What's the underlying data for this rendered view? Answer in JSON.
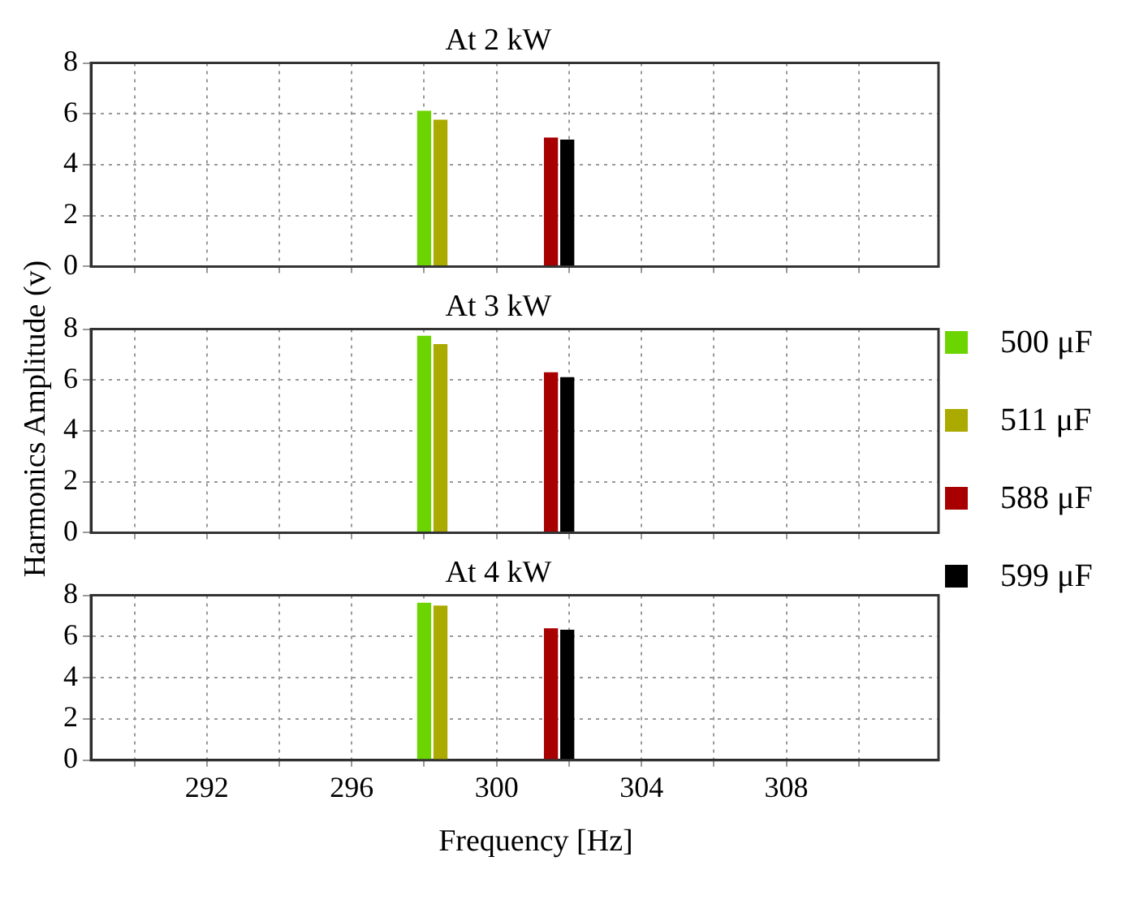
{
  "chart_data": [
    {
      "type": "bar",
      "title": "At 2 kW",
      "legend": "right",
      "xlim": [
        288.8,
        312.2
      ],
      "xticks": [
        {
          "value": 290,
          "label": null
        },
        292,
        {
          "value": 294,
          "label": null
        },
        296,
        {
          "value": 298,
          "label": null
        },
        300,
        {
          "value": 302,
          "label": null
        },
        304,
        {
          "value": 306,
          "label": null
        },
        308,
        {
          "value": 310,
          "label": null
        }
      ],
      "ylim": [
        0,
        8
      ],
      "yticks": [
        0,
        2,
        4,
        6,
        8
      ],
      "grid": true,
      "tick_labels": "y",
      "series": [
        {
          "name": "500 μF",
          "color": "#6cd400",
          "x": [
            298
          ],
          "values": [
            6.1
          ]
        },
        {
          "name": "511 μF",
          "color": "#aaaa00",
          "x": [
            298.45
          ],
          "values": [
            5.75
          ]
        },
        {
          "name": "588 μF",
          "color": "#a80000",
          "x": [
            301.5
          ],
          "values": [
            5.05
          ]
        },
        {
          "name": "599 μF",
          "color": "#000000",
          "x": [
            301.95
          ],
          "values": [
            4.97
          ]
        }
      ]
    },
    {
      "type": "bar",
      "title": "At 3 kW",
      "ylabel": "Harmonics Amplitude (v)",
      "xlim": [
        288.8,
        312.2
      ],
      "xticks": [
        {
          "value": 290,
          "label": null
        },
        292,
        {
          "value": 294,
          "label": null
        },
        296,
        {
          "value": 298,
          "label": null
        },
        300,
        {
          "value": 302,
          "label": null
        },
        304,
        {
          "value": 306,
          "label": null
        },
        308,
        {
          "value": 310,
          "label": null
        }
      ],
      "ylim": [
        0,
        8
      ],
      "yticks": [
        0,
        2,
        4,
        6,
        8
      ],
      "grid": true,
      "tick_labels": "y",
      "series": [
        {
          "color": "#6cd400",
          "x": [
            298
          ],
          "values": [
            7.72
          ]
        },
        {
          "color": "#aaaa00",
          "x": [
            298.45
          ],
          "values": [
            7.39
          ]
        },
        {
          "color": "#a80000",
          "x": [
            301.5
          ],
          "values": [
            6.28
          ]
        },
        {
          "color": "#000000",
          "x": [
            301.95
          ],
          "values": [
            6.09
          ]
        }
      ]
    },
    {
      "type": "bar",
      "title": "At 4 kW",
      "xlabel": "Frequency [Hz]",
      "xlim": [
        288.8,
        312.2
      ],
      "xticks": [
        {
          "value": 290,
          "label": null
        },
        292,
        {
          "value": 294,
          "label": null
        },
        296,
        {
          "value": 298,
          "label": null
        },
        300,
        {
          "value": 302,
          "label": null
        },
        304,
        {
          "value": 306,
          "label": null
        },
        308,
        {
          "value": 310,
          "label": null
        }
      ],
      "ylim": [
        0,
        8
      ],
      "yticks": [
        0,
        2,
        4,
        6,
        8
      ],
      "grid": true,
      "series": [
        {
          "color": "#6cd400",
          "x": [
            298
          ],
          "values": [
            7.61
          ]
        },
        {
          "color": "#aaaa00",
          "x": [
            298.45
          ],
          "values": [
            7.48
          ]
        },
        {
          "color": "#a80000",
          "x": [
            301.5
          ],
          "values": [
            6.37
          ]
        },
        {
          "color": "#000000",
          "x": [
            301.95
          ],
          "values": [
            6.3
          ]
        }
      ]
    }
  ]
}
